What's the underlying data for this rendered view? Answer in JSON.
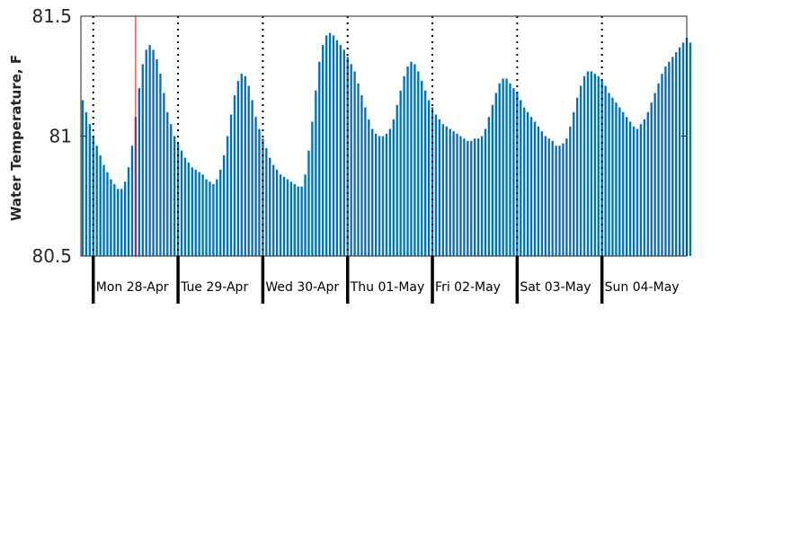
{
  "chart_data": {
    "type": "bar",
    "title": "",
    "xlabel": "",
    "ylabel": "Water Temperature, F",
    "ylim": [
      80.5,
      81.5
    ],
    "yticks": [
      80.5,
      81,
      81.5
    ],
    "grid": false,
    "legend": "none",
    "bar_color": "#0072bd",
    "marker_color": "#ff0000",
    "x_start": "Sun 27-Apr 20:30",
    "x_interval_minutes": 60,
    "x_end": "Mon 05-May 00:00",
    "marker_x": "Mon 28-Apr 12:00",
    "day_labels": [
      "Mon 28-Apr",
      "Tue 29-Apr",
      "Wed 30-Apr",
      "Thu 01-May",
      "Fri 02-May",
      "Sat 03-May",
      "Sun 04-May"
    ],
    "series": [
      {
        "values": [
          81.15,
          81.1,
          81.05,
          81.0,
          80.96,
          80.92,
          80.88,
          80.85,
          80.82,
          80.8,
          80.78,
          80.78,
          80.81,
          80.87,
          80.96,
          81.08,
          81.2,
          81.3,
          81.36,
          81.38,
          81.36,
          81.32,
          81.26,
          81.18,
          81.1,
          81.05,
          81.0,
          80.97,
          80.94,
          80.91,
          80.89,
          80.87,
          80.86,
          80.85,
          80.84,
          80.82,
          80.81,
          80.8,
          80.82,
          80.86,
          80.92,
          81.0,
          81.09,
          81.17,
          81.23,
          81.26,
          81.25,
          81.21,
          81.15,
          81.08,
          81.03,
          80.99,
          80.95,
          80.91,
          80.88,
          80.86,
          80.84,
          80.83,
          80.82,
          80.81,
          80.8,
          80.79,
          80.79,
          80.84,
          80.94,
          81.06,
          81.19,
          81.31,
          81.38,
          81.42,
          81.43,
          81.42,
          81.4,
          81.38,
          81.36,
          81.33,
          81.3,
          81.27,
          81.22,
          81.17,
          81.12,
          81.07,
          81.03,
          81.01,
          81.0,
          81.0,
          81.01,
          81.03,
          81.07,
          81.13,
          81.19,
          81.25,
          81.29,
          81.31,
          81.3,
          81.27,
          81.23,
          81.19,
          81.15,
          81.12,
          81.09,
          81.07,
          81.05,
          81.04,
          81.03,
          81.02,
          81.01,
          81.0,
          80.99,
          80.98,
          80.98,
          80.99,
          80.99,
          81.0,
          81.03,
          81.08,
          81.13,
          81.18,
          81.22,
          81.24,
          81.24,
          81.22,
          81.2,
          81.18,
          81.15,
          81.12,
          81.1,
          81.08,
          81.06,
          81.04,
          81.02,
          81.0,
          80.99,
          80.98,
          80.96,
          80.96,
          80.97,
          80.99,
          81.04,
          81.1,
          81.16,
          81.21,
          81.25,
          81.27,
          81.27,
          81.26,
          81.25,
          81.23,
          81.21,
          81.18,
          81.16,
          81.14,
          81.12,
          81.1,
          81.08,
          81.06,
          81.04,
          81.03,
          81.05,
          81.07,
          81.1,
          81.14,
          81.18,
          81.22,
          81.26,
          81.29,
          81.31,
          81.33,
          81.35,
          81.37,
          81.39,
          81.41,
          81.39
        ]
      }
    ]
  }
}
